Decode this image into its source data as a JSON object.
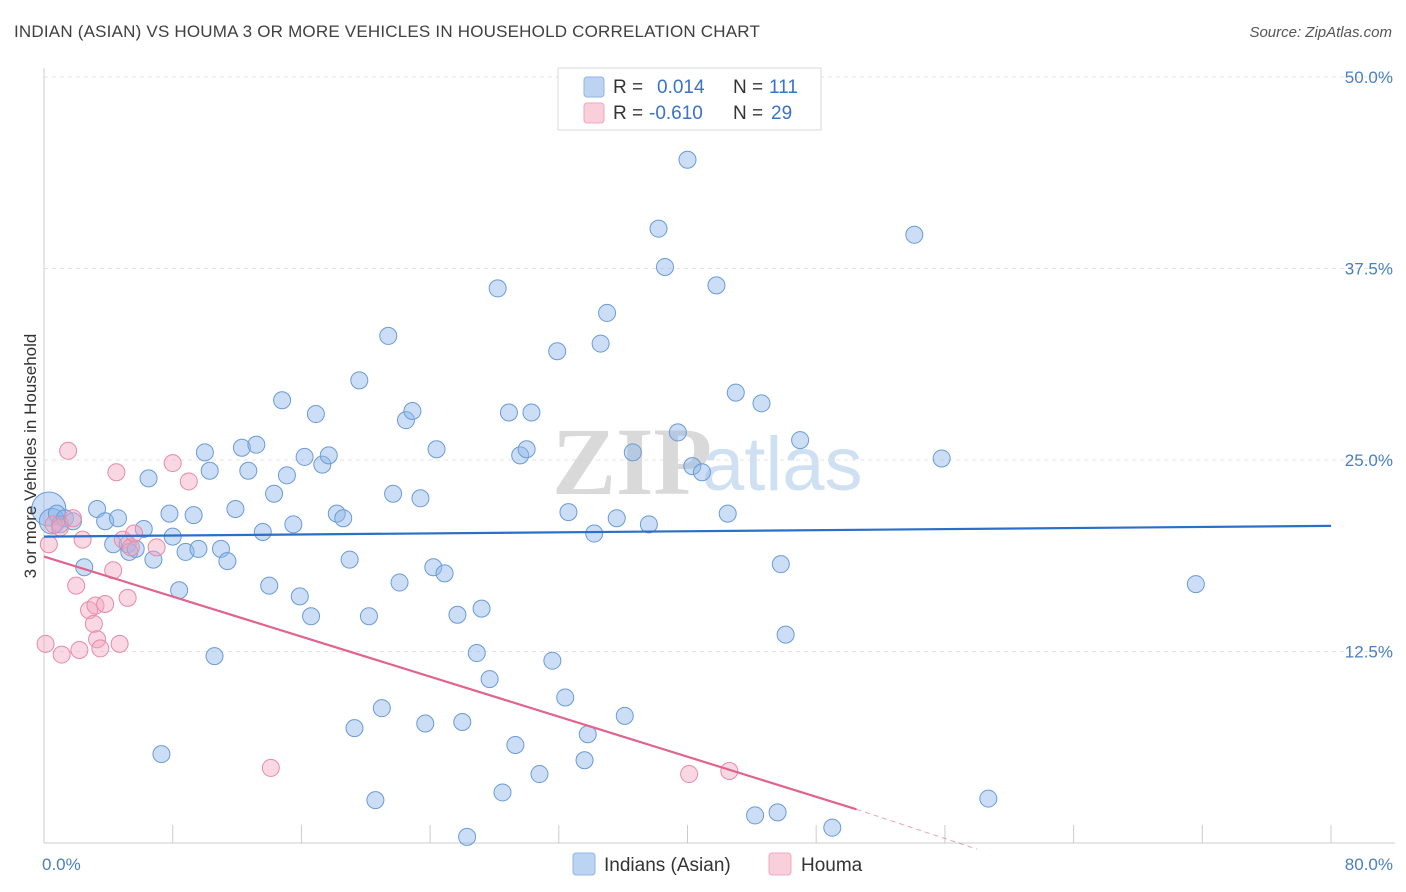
{
  "title": "INDIAN (ASIAN) VS HOUMA 3 OR MORE VEHICLES IN HOUSEHOLD CORRELATION CHART",
  "source": "Source: ZipAtlas.com",
  "watermark": {
    "zip": "ZIP",
    "atlas": "atlas"
  },
  "chart_data": {
    "type": "scatter",
    "title": "INDIAN (ASIAN) VS HOUMA 3 OR MORE VEHICLES IN HOUSEHOLD CORRELATION CHART",
    "xlabel": "",
    "ylabel": "3 or more Vehicles in Household",
    "xlim": [
      0,
      80
    ],
    "ylim": [
      0,
      50
    ],
    "y_ticks": [
      {
        "value": 12.5,
        "label": "12.5%"
      },
      {
        "value": 25,
        "label": "25.0%"
      },
      {
        "value": 37.5,
        "label": "37.5%"
      },
      {
        "value": 50,
        "label": "50.0%"
      }
    ],
    "x_tick_labels": [
      {
        "value": 0,
        "label": "0.0%"
      },
      {
        "value": 80,
        "label": "80.0%"
      }
    ],
    "x_minor_ticks": [
      8,
      16,
      24,
      32,
      40,
      48,
      56,
      64,
      72,
      80
    ],
    "legend": {
      "position": "top-center",
      "rows": [
        {
          "r_label": "R =",
          "r_value": "0.014",
          "n_label": "N =",
          "n_value": "111",
          "color": "#8fb6e8"
        },
        {
          "r_label": "R =",
          "r_value": "-0.610",
          "n_label": "N =",
          "n_value": "29",
          "color": "#f2a7c0"
        }
      ]
    },
    "series": [
      {
        "name": "Indians (Asian)",
        "color": "#8fb6e8",
        "stroke": "#6a9bd8",
        "line_color": "#2a6fc8",
        "trend": {
          "x1": 0,
          "y1": 20.0,
          "x2": 80,
          "y2": 20.7
        },
        "points": [
          [
            0.3,
            21.8,
            2.0
          ],
          [
            0.5,
            21.0,
            1.5
          ],
          [
            0.8,
            21.5,
            1
          ],
          [
            1.0,
            20.8,
            1
          ],
          [
            1.3,
            21.2,
            1
          ],
          [
            1.8,
            21.0,
            1
          ],
          [
            2.5,
            18.0,
            1
          ],
          [
            3.3,
            21.8,
            1
          ],
          [
            3.8,
            21.0,
            1
          ],
          [
            4.3,
            19.5,
            1
          ],
          [
            4.6,
            21.2,
            1
          ],
          [
            5.2,
            19.5,
            1
          ],
          [
            5.3,
            19.0,
            1
          ],
          [
            5.7,
            19.2,
            1
          ],
          [
            6.2,
            20.5,
            1
          ],
          [
            6.5,
            23.8,
            1
          ],
          [
            6.8,
            18.5,
            1
          ],
          [
            7.3,
            5.8,
            1
          ],
          [
            7.8,
            21.5,
            1
          ],
          [
            8.0,
            20.0,
            1
          ],
          [
            8.4,
            16.5,
            1
          ],
          [
            8.8,
            19.0,
            1
          ],
          [
            9.3,
            21.4,
            1
          ],
          [
            9.6,
            19.2,
            1
          ],
          [
            10.0,
            25.5,
            1
          ],
          [
            10.3,
            24.3,
            1
          ],
          [
            10.6,
            12.2,
            1
          ],
          [
            11.0,
            19.2,
            1
          ],
          [
            11.4,
            18.4,
            1
          ],
          [
            11.9,
            21.8,
            1
          ],
          [
            12.3,
            25.8,
            1
          ],
          [
            12.7,
            24.3,
            1
          ],
          [
            13.2,
            26.0,
            1
          ],
          [
            13.6,
            20.3,
            1
          ],
          [
            14.0,
            16.8,
            1
          ],
          [
            14.3,
            22.8,
            1
          ],
          [
            14.8,
            28.9,
            1
          ],
          [
            15.1,
            24.0,
            1
          ],
          [
            15.5,
            20.8,
            1
          ],
          [
            15.9,
            16.1,
            1
          ],
          [
            16.2,
            25.2,
            1
          ],
          [
            16.6,
            14.8,
            1
          ],
          [
            16.9,
            28.0,
            1
          ],
          [
            17.3,
            24.7,
            1
          ],
          [
            17.7,
            25.3,
            1
          ],
          [
            18.2,
            21.5,
            1
          ],
          [
            18.6,
            21.2,
            1
          ],
          [
            19.0,
            18.5,
            1
          ],
          [
            19.3,
            7.5,
            1
          ],
          [
            19.6,
            30.2,
            1
          ],
          [
            20.2,
            14.8,
            1
          ],
          [
            20.6,
            2.8,
            1
          ],
          [
            21.0,
            8.8,
            1
          ],
          [
            21.4,
            33.1,
            1
          ],
          [
            21.7,
            22.8,
            1
          ],
          [
            22.1,
            17.0,
            1
          ],
          [
            22.5,
            27.6,
            1
          ],
          [
            22.9,
            28.2,
            1
          ],
          [
            23.4,
            22.5,
            1
          ],
          [
            23.7,
            7.8,
            1
          ],
          [
            24.2,
            18.0,
            1
          ],
          [
            24.4,
            25.7,
            1
          ],
          [
            24.9,
            17.6,
            1
          ],
          [
            25.7,
            14.9,
            1
          ],
          [
            26.0,
            7.9,
            1
          ],
          [
            26.3,
            0.4,
            1
          ],
          [
            26.9,
            12.4,
            1
          ],
          [
            27.2,
            15.3,
            1
          ],
          [
            27.7,
            10.7,
            1
          ],
          [
            28.2,
            36.2,
            1
          ],
          [
            28.5,
            3.3,
            1
          ],
          [
            28.9,
            28.1,
            1
          ],
          [
            29.3,
            6.4,
            1
          ],
          [
            29.6,
            25.3,
            1
          ],
          [
            30.0,
            25.7,
            1
          ],
          [
            30.3,
            28.1,
            1
          ],
          [
            30.8,
            4.5,
            1
          ],
          [
            31.6,
            11.9,
            1
          ],
          [
            31.9,
            32.1,
            1
          ],
          [
            32.4,
            9.5,
            1
          ],
          [
            32.6,
            21.6,
            1
          ],
          [
            33.6,
            5.4,
            1
          ],
          [
            33.8,
            7.1,
            1
          ],
          [
            34.2,
            20.2,
            1
          ],
          [
            34.6,
            32.6,
            1
          ],
          [
            35.0,
            34.6,
            1
          ],
          [
            35.6,
            21.2,
            1
          ],
          [
            36.1,
            8.3,
            1
          ],
          [
            36.6,
            25.5,
            1
          ],
          [
            37.6,
            20.8,
            1
          ],
          [
            38.2,
            40.1,
            1
          ],
          [
            38.6,
            37.6,
            1
          ],
          [
            39.4,
            26.8,
            1
          ],
          [
            40.0,
            44.6,
            1
          ],
          [
            40.3,
            24.6,
            1
          ],
          [
            40.9,
            24.2,
            1
          ],
          [
            41.8,
            36.4,
            1
          ],
          [
            42.5,
            21.5,
            1
          ],
          [
            43.0,
            29.4,
            1
          ],
          [
            44.2,
            1.8,
            1
          ],
          [
            44.6,
            28.7,
            1
          ],
          [
            45.6,
            2.0,
            1
          ],
          [
            45.8,
            18.2,
            1
          ],
          [
            46.1,
            13.6,
            1
          ],
          [
            47.0,
            26.3,
            1
          ],
          [
            49.0,
            1.0,
            1
          ],
          [
            54.1,
            39.7,
            1
          ],
          [
            55.8,
            25.1,
            1
          ],
          [
            58.7,
            2.9,
            1
          ],
          [
            71.6,
            16.9,
            1
          ]
        ]
      },
      {
        "name": "Houma",
        "color": "#f2a7c0",
        "stroke": "#e88aa8",
        "line_color": "#e0648c",
        "trend": {
          "x1": 0,
          "y1": 18.7,
          "x2": 50.5,
          "y2": 2.2
        },
        "trend_dashed": {
          "x1": 50.5,
          "y1": 2.2,
          "x2": 58,
          "y2": -0.4
        },
        "points": [
          [
            0.1,
            13.0,
            1
          ],
          [
            0.3,
            19.5,
            1
          ],
          [
            0.6,
            20.8,
            1
          ],
          [
            1.0,
            20.6,
            1
          ],
          [
            1.1,
            12.3,
            1
          ],
          [
            1.5,
            25.6,
            1
          ],
          [
            1.8,
            21.2,
            1
          ],
          [
            2.0,
            16.8,
            1
          ],
          [
            2.2,
            12.6,
            1
          ],
          [
            2.4,
            19.8,
            1
          ],
          [
            2.8,
            15.2,
            1
          ],
          [
            3.1,
            14.3,
            1
          ],
          [
            3.2,
            15.5,
            1
          ],
          [
            3.3,
            13.3,
            1
          ],
          [
            3.5,
            12.7,
            1
          ],
          [
            3.8,
            15.6,
            1
          ],
          [
            4.3,
            17.8,
            1
          ],
          [
            4.5,
            24.2,
            1
          ],
          [
            4.7,
            13.0,
            1
          ],
          [
            4.9,
            19.8,
            1
          ],
          [
            5.2,
            16.0,
            1
          ],
          [
            5.4,
            19.3,
            1
          ],
          [
            5.6,
            20.2,
            1
          ],
          [
            7.0,
            19.3,
            1
          ],
          [
            8.0,
            24.8,
            1
          ],
          [
            9.0,
            23.6,
            1
          ],
          [
            14.1,
            4.9,
            1
          ],
          [
            40.1,
            4.5,
            1
          ],
          [
            42.6,
            4.7,
            1
          ]
        ]
      }
    ]
  },
  "bottom_legend": [
    {
      "label": "Indians (Asian)",
      "color": "#8fb6e8"
    },
    {
      "label": "Houma",
      "color": "#f2a7c0"
    }
  ]
}
